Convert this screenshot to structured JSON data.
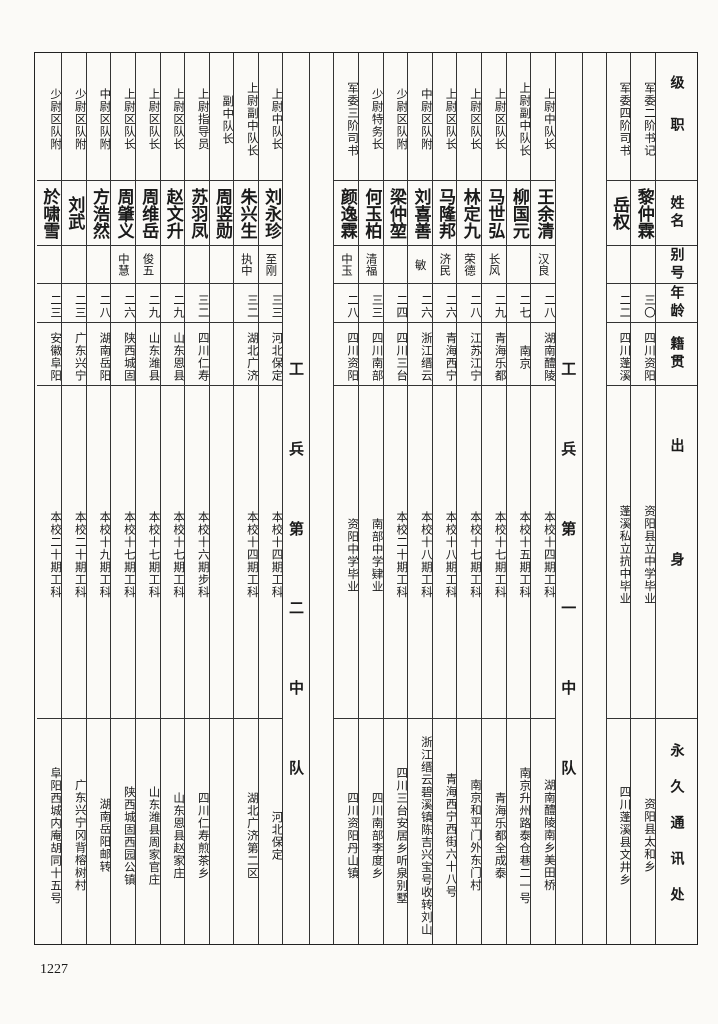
{
  "header": {
    "rank": "级职",
    "name": "姓名",
    "alias": "别号",
    "age": "年龄",
    "native_place": "籍贯",
    "background": "出身",
    "address": "永久通讯处"
  },
  "groups": [
    {
      "title": "",
      "rows": [
        {
          "rank": "军委二阶书记",
          "name": "黎仲霖",
          "alias": "",
          "age": "三〇",
          "native_place": "四川资阳",
          "background": "资阳县立中学毕业",
          "address": "资阳县太和乡"
        },
        {
          "rank": "军委四阶司书",
          "name": "岳权",
          "alias": "",
          "age": "二二",
          "native_place": "四川蓬溪",
          "background": "蓬溪私立抗中毕业",
          "address": "四川蓬溪县文井乡"
        }
      ]
    },
    {
      "title": "工兵第一中队",
      "rows": [
        {
          "rank": "上尉中队长",
          "name": "王余清",
          "alias": "汉良",
          "age": "二八",
          "native_place": "湖南醴陵",
          "background": "本校十四期工科",
          "address": "湖南醴陵南乡美田桥"
        },
        {
          "rank": "上尉副中队长",
          "name": "柳国元",
          "alias": "",
          "age": "二七",
          "native_place": "南京",
          "background": "本校十五期工科",
          "address": "南京升州路泰仓巷二一号"
        },
        {
          "rank": "上尉区队长",
          "name": "马世弘",
          "alias": "长风",
          "age": "二九",
          "native_place": "青海乐都",
          "background": "本校十七期工科",
          "address": "青海乐都全成泰"
        },
        {
          "rank": "上尉区队长",
          "name": "林定九",
          "alias": "荣德",
          "age": "二八",
          "native_place": "江苏江宁",
          "background": "本校十七期工科",
          "address": "南京和平门外东门村"
        },
        {
          "rank": "上尉区队长",
          "name": "马隆邦",
          "alias": "济民",
          "age": "二六",
          "native_place": "青海西宁",
          "background": "本校十八期工科",
          "address": "青海西宁西街六十八号"
        },
        {
          "rank": "中尉区队附",
          "name": "刘喜善",
          "alias": "敏",
          "age": "二六",
          "native_place": "浙江缙云",
          "background": "本校十八期工科",
          "address": "浙江缙云碧溪镇陈吉兴宝号收转刘山"
        },
        {
          "rank": "少尉区队附",
          "name": "梁仲堃",
          "alias": "",
          "age": "二四",
          "native_place": "四川三台",
          "background": "本校二十期工科",
          "address": "四川三台安居乡听泉别墅"
        },
        {
          "rank": "少尉特务长",
          "name": "何玉柏",
          "alias": "清福",
          "age": "三三",
          "native_place": "四川南部",
          "background": "南部中学肄业",
          "address": "四川南部李度乡"
        },
        {
          "rank": "军委三阶司书",
          "name": "颜逸霖",
          "alias": "中玉",
          "age": "二八",
          "native_place": "四川资阳",
          "background": "资阳中学毕业",
          "address": "四川资阳丹山镇"
        }
      ]
    },
    {
      "title": "工兵第二中队",
      "rows": [
        {
          "rank": "上尉中队长",
          "name": "刘永珍",
          "alias": "至刚",
          "age": "三三",
          "native_place": "河北保定",
          "background": "本校十四期工科",
          "address": "河北保定"
        },
        {
          "rank": "上尉副中队长",
          "name": "朱兴生",
          "alias": "执中",
          "age": "三二",
          "native_place": "湖北广济",
          "background": "本校十四期工科",
          "address": "湖北广济第二区"
        },
        {
          "rank": "副中队长",
          "name": "周竖勋",
          "alias": "",
          "age": "",
          "native_place": "",
          "background": "",
          "address": ""
        },
        {
          "rank": "上尉指导员",
          "name": "苏羽凤",
          "alias": "",
          "age": "三二",
          "native_place": "四川仁寿",
          "background": "本校十六期步科",
          "address": "四川仁寿煎茶乡"
        },
        {
          "rank": "上尉区队长",
          "name": "赵文升",
          "alias": "",
          "age": "二九",
          "native_place": "山东恩县",
          "background": "本校十七期工科",
          "address": "山东恩县赵家庄"
        },
        {
          "rank": "上尉区队长",
          "name": "周维岳",
          "alias": "俊五",
          "age": "二九",
          "native_place": "山东潍县",
          "background": "本校十七期工科",
          "address": "山东潍县周家官庄"
        },
        {
          "rank": "上尉区队长",
          "name": "周肇义",
          "alias": "中慧",
          "age": "二六",
          "native_place": "陕西城固",
          "background": "本校十七期工科",
          "address": "陕西城固西园公镇"
        },
        {
          "rank": "中尉区队附",
          "name": "方浩然",
          "alias": "",
          "age": "二八",
          "native_place": "湖南岳阳",
          "background": "本校十九期工科",
          "address": "湖南岳阳邮转"
        },
        {
          "rank": "少尉区队附",
          "name": "刘武",
          "alias": "",
          "age": "二三",
          "native_place": "广东兴宁",
          "background": "本校二十期工科",
          "address": "广东兴宁冈背榕树村"
        },
        {
          "rank": "少尉区队附",
          "name": "於啸雪",
          "alias": "",
          "age": "二三",
          "native_place": "安徽阜阳",
          "background": "本校二十期工科",
          "address": "阜阳西城内庵胡同十五号"
        }
      ]
    }
  ],
  "page_number": "1227"
}
